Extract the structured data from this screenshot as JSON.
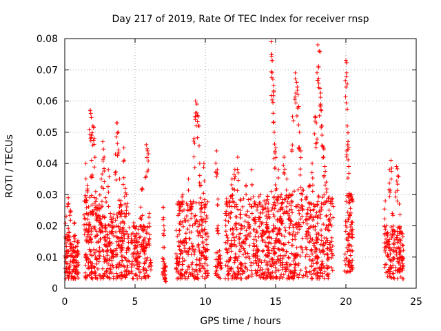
{
  "chart_data": {
    "type": "scatter",
    "title": "Day 217 of 2019, Rate Of TEC Index for receiver rnsp",
    "xlabel": "GPS time / hours",
    "ylabel": "ROTI / TECUs",
    "xlim": [
      0,
      25
    ],
    "ylim": [
      0,
      0.08
    ],
    "xticks": [
      0,
      5,
      10,
      15,
      20,
      25
    ],
    "xtick_labels": [
      "0",
      "5",
      "10",
      "15",
      "20",
      "25"
    ],
    "yticks": [
      0,
      0.01,
      0.02,
      0.03,
      0.04,
      0.05,
      0.06,
      0.07,
      0.08
    ],
    "ytick_labels": [
      "0",
      "0.01",
      "0.02",
      "0.03",
      "0.04",
      "0.05",
      "0.06",
      "0.07",
      "0.08"
    ],
    "grid": true,
    "marker": "plus",
    "color": "#ff0000",
    "series": [
      {
        "name": "ROTI",
        "points": [
          [
            0.1,
            0.023
          ],
          [
            0.15,
            0.012
          ],
          [
            0.2,
            0.008
          ],
          [
            0.25,
            0.029
          ],
          [
            0.3,
            0.018
          ],
          [
            0.35,
            0.006
          ],
          [
            0.4,
            0.025
          ],
          [
            0.5,
            0.014
          ],
          [
            0.6,
            0.01
          ],
          [
            0.7,
            0.021
          ],
          [
            0.8,
            0.007
          ],
          [
            0.9,
            0.012
          ],
          [
            1.4,
            0.028
          ],
          [
            1.5,
            0.04
          ],
          [
            1.6,
            0.033
          ],
          [
            1.7,
            0.019
          ],
          [
            1.8,
            0.057
          ],
          [
            1.85,
            0.056
          ],
          [
            1.9,
            0.041
          ],
          [
            2.0,
            0.052
          ],
          [
            2.1,
            0.048
          ],
          [
            2.2,
            0.031
          ],
          [
            2.3,
            0.025
          ],
          [
            2.4,
            0.015
          ],
          [
            2.5,
            0.023
          ],
          [
            2.6,
            0.035
          ],
          [
            2.7,
            0.047
          ],
          [
            2.8,
            0.042
          ],
          [
            2.9,
            0.029
          ],
          [
            3.0,
            0.012
          ],
          [
            3.1,
            0.038
          ],
          [
            3.2,
            0.018
          ],
          [
            3.3,
            0.022
          ],
          [
            3.4,
            0.011
          ],
          [
            3.6,
            0.043
          ],
          [
            3.7,
            0.053
          ],
          [
            3.8,
            0.05
          ],
          [
            3.9,
            0.035
          ],
          [
            4.0,
            0.028
          ],
          [
            4.1,
            0.019
          ],
          [
            4.2,
            0.045
          ],
          [
            4.3,
            0.032
          ],
          [
            4.4,
            0.03
          ],
          [
            4.5,
            0.016
          ],
          [
            4.8,
            0.011
          ],
          [
            4.9,
            0.021
          ],
          [
            5.0,
            0.017
          ],
          [
            5.1,
            0.009
          ],
          [
            5.2,
            0.015
          ],
          [
            5.4,
            0.026
          ],
          [
            5.5,
            0.032
          ],
          [
            5.6,
            0.02
          ],
          [
            5.7,
            0.012
          ],
          [
            5.8,
            0.046
          ],
          [
            5.9,
            0.044
          ],
          [
            6.0,
            0.024
          ],
          [
            6.1,
            0.009
          ],
          [
            7.0,
            0.026
          ],
          [
            7.05,
            0.02
          ],
          [
            7.1,
            0.008
          ],
          [
            7.15,
            0.003
          ],
          [
            8.0,
            0.01
          ],
          [
            8.2,
            0.025
          ],
          [
            8.4,
            0.03
          ],
          [
            8.6,
            0.016
          ],
          [
            8.8,
            0.035
          ],
          [
            9.0,
            0.027
          ],
          [
            9.2,
            0.048
          ],
          [
            9.3,
            0.06
          ],
          [
            9.4,
            0.059
          ],
          [
            9.5,
            0.055
          ],
          [
            9.6,
            0.04
          ],
          [
            9.7,
            0.033
          ],
          [
            9.8,
            0.022
          ],
          [
            9.9,
            0.04
          ],
          [
            10.0,
            0.027
          ],
          [
            10.1,
            0.014
          ],
          [
            10.8,
            0.044
          ],
          [
            10.85,
            0.038
          ],
          [
            10.9,
            0.02
          ],
          [
            11.0,
            0.012
          ],
          [
            11.1,
            0.008
          ],
          [
            11.5,
            0.017
          ],
          [
            11.7,
            0.028
          ],
          [
            11.9,
            0.035
          ],
          [
            12.1,
            0.038
          ],
          [
            12.3,
            0.042
          ],
          [
            12.5,
            0.025
          ],
          [
            12.7,
            0.015
          ],
          [
            12.9,
            0.033
          ],
          [
            13.1,
            0.02
          ],
          [
            13.3,
            0.038
          ],
          [
            13.5,
            0.022
          ],
          [
            13.7,
            0.012
          ],
          [
            13.9,
            0.03
          ],
          [
            14.1,
            0.018
          ],
          [
            14.3,
            0.027
          ],
          [
            14.5,
            0.013
          ],
          [
            14.7,
            0.079
          ],
          [
            14.75,
            0.073
          ],
          [
            14.8,
            0.067
          ],
          [
            14.85,
            0.065
          ],
          [
            14.9,
            0.05
          ],
          [
            15.0,
            0.045
          ],
          [
            15.2,
            0.038
          ],
          [
            15.4,
            0.03
          ],
          [
            15.6,
            0.042
          ],
          [
            15.8,
            0.035
          ],
          [
            16.0,
            0.025
          ],
          [
            16.2,
            0.055
          ],
          [
            16.4,
            0.069
          ],
          [
            16.5,
            0.066
          ],
          [
            16.6,
            0.062
          ],
          [
            16.7,
            0.05
          ],
          [
            16.8,
            0.044
          ],
          [
            16.9,
            0.03
          ],
          [
            17.2,
            0.022
          ],
          [
            17.4,
            0.033
          ],
          [
            17.6,
            0.04
          ],
          [
            17.8,
            0.055
          ],
          [
            17.9,
            0.053
          ],
          [
            18.0,
            0.078
          ],
          [
            18.1,
            0.076
          ],
          [
            18.15,
            0.064
          ],
          [
            18.2,
            0.059
          ],
          [
            18.3,
            0.052
          ],
          [
            18.4,
            0.045
          ],
          [
            18.5,
            0.039
          ],
          [
            18.6,
            0.034
          ],
          [
            18.8,
            0.025
          ],
          [
            19.0,
            0.015
          ],
          [
            20.0,
            0.073
          ],
          [
            20.05,
            0.069
          ],
          [
            20.1,
            0.052
          ],
          [
            20.15,
            0.047
          ],
          [
            20.2,
            0.039
          ],
          [
            20.3,
            0.03
          ],
          [
            20.4,
            0.018
          ],
          [
            20.45,
            0.009
          ],
          [
            22.8,
            0.028
          ],
          [
            22.9,
            0.02
          ],
          [
            23.0,
            0.015
          ],
          [
            23.1,
            0.038
          ],
          [
            23.2,
            0.041
          ],
          [
            23.3,
            0.024
          ],
          [
            23.4,
            0.012
          ],
          [
            23.6,
            0.039
          ],
          [
            23.7,
            0.036
          ],
          [
            23.8,
            0.027
          ],
          [
            23.9,
            0.018
          ],
          [
            24.0,
            0.01
          ]
        ],
        "bands": [
          {
            "x": [
              0.0,
              1.0
            ],
            "y": [
              0.003,
              0.017
            ],
            "n": 80
          },
          {
            "x": [
              1.4,
              2.5
            ],
            "y": [
              0.003,
              0.03
            ],
            "n": 140
          },
          {
            "x": [
              2.5,
              3.5
            ],
            "y": [
              0.003,
              0.025
            ],
            "n": 110
          },
          {
            "x": [
              3.6,
              4.6
            ],
            "y": [
              0.003,
              0.025
            ],
            "n": 110
          },
          {
            "x": [
              4.7,
              6.1
            ],
            "y": [
              0.003,
              0.02
            ],
            "n": 110
          },
          {
            "x": [
              6.95,
              7.2
            ],
            "y": [
              0.003,
              0.01
            ],
            "n": 18
          },
          {
            "x": [
              7.9,
              10.2
            ],
            "y": [
              0.003,
              0.028
            ],
            "n": 230
          },
          {
            "x": [
              10.7,
              11.15
            ],
            "y": [
              0.003,
              0.012
            ],
            "n": 25
          },
          {
            "x": [
              11.4,
              14.6
            ],
            "y": [
              0.003,
              0.03
            ],
            "n": 320
          },
          {
            "x": [
              14.6,
              17.0
            ],
            "y": [
              0.003,
              0.032
            ],
            "n": 270
          },
          {
            "x": [
              17.1,
              19.1
            ],
            "y": [
              0.003,
              0.03
            ],
            "n": 220
          },
          {
            "x": [
              19.9,
              20.5
            ],
            "y": [
              0.005,
              0.03
            ],
            "n": 70
          },
          {
            "x": [
              22.7,
              24.1
            ],
            "y": [
              0.003,
              0.02
            ],
            "n": 130
          }
        ]
      }
    ]
  }
}
